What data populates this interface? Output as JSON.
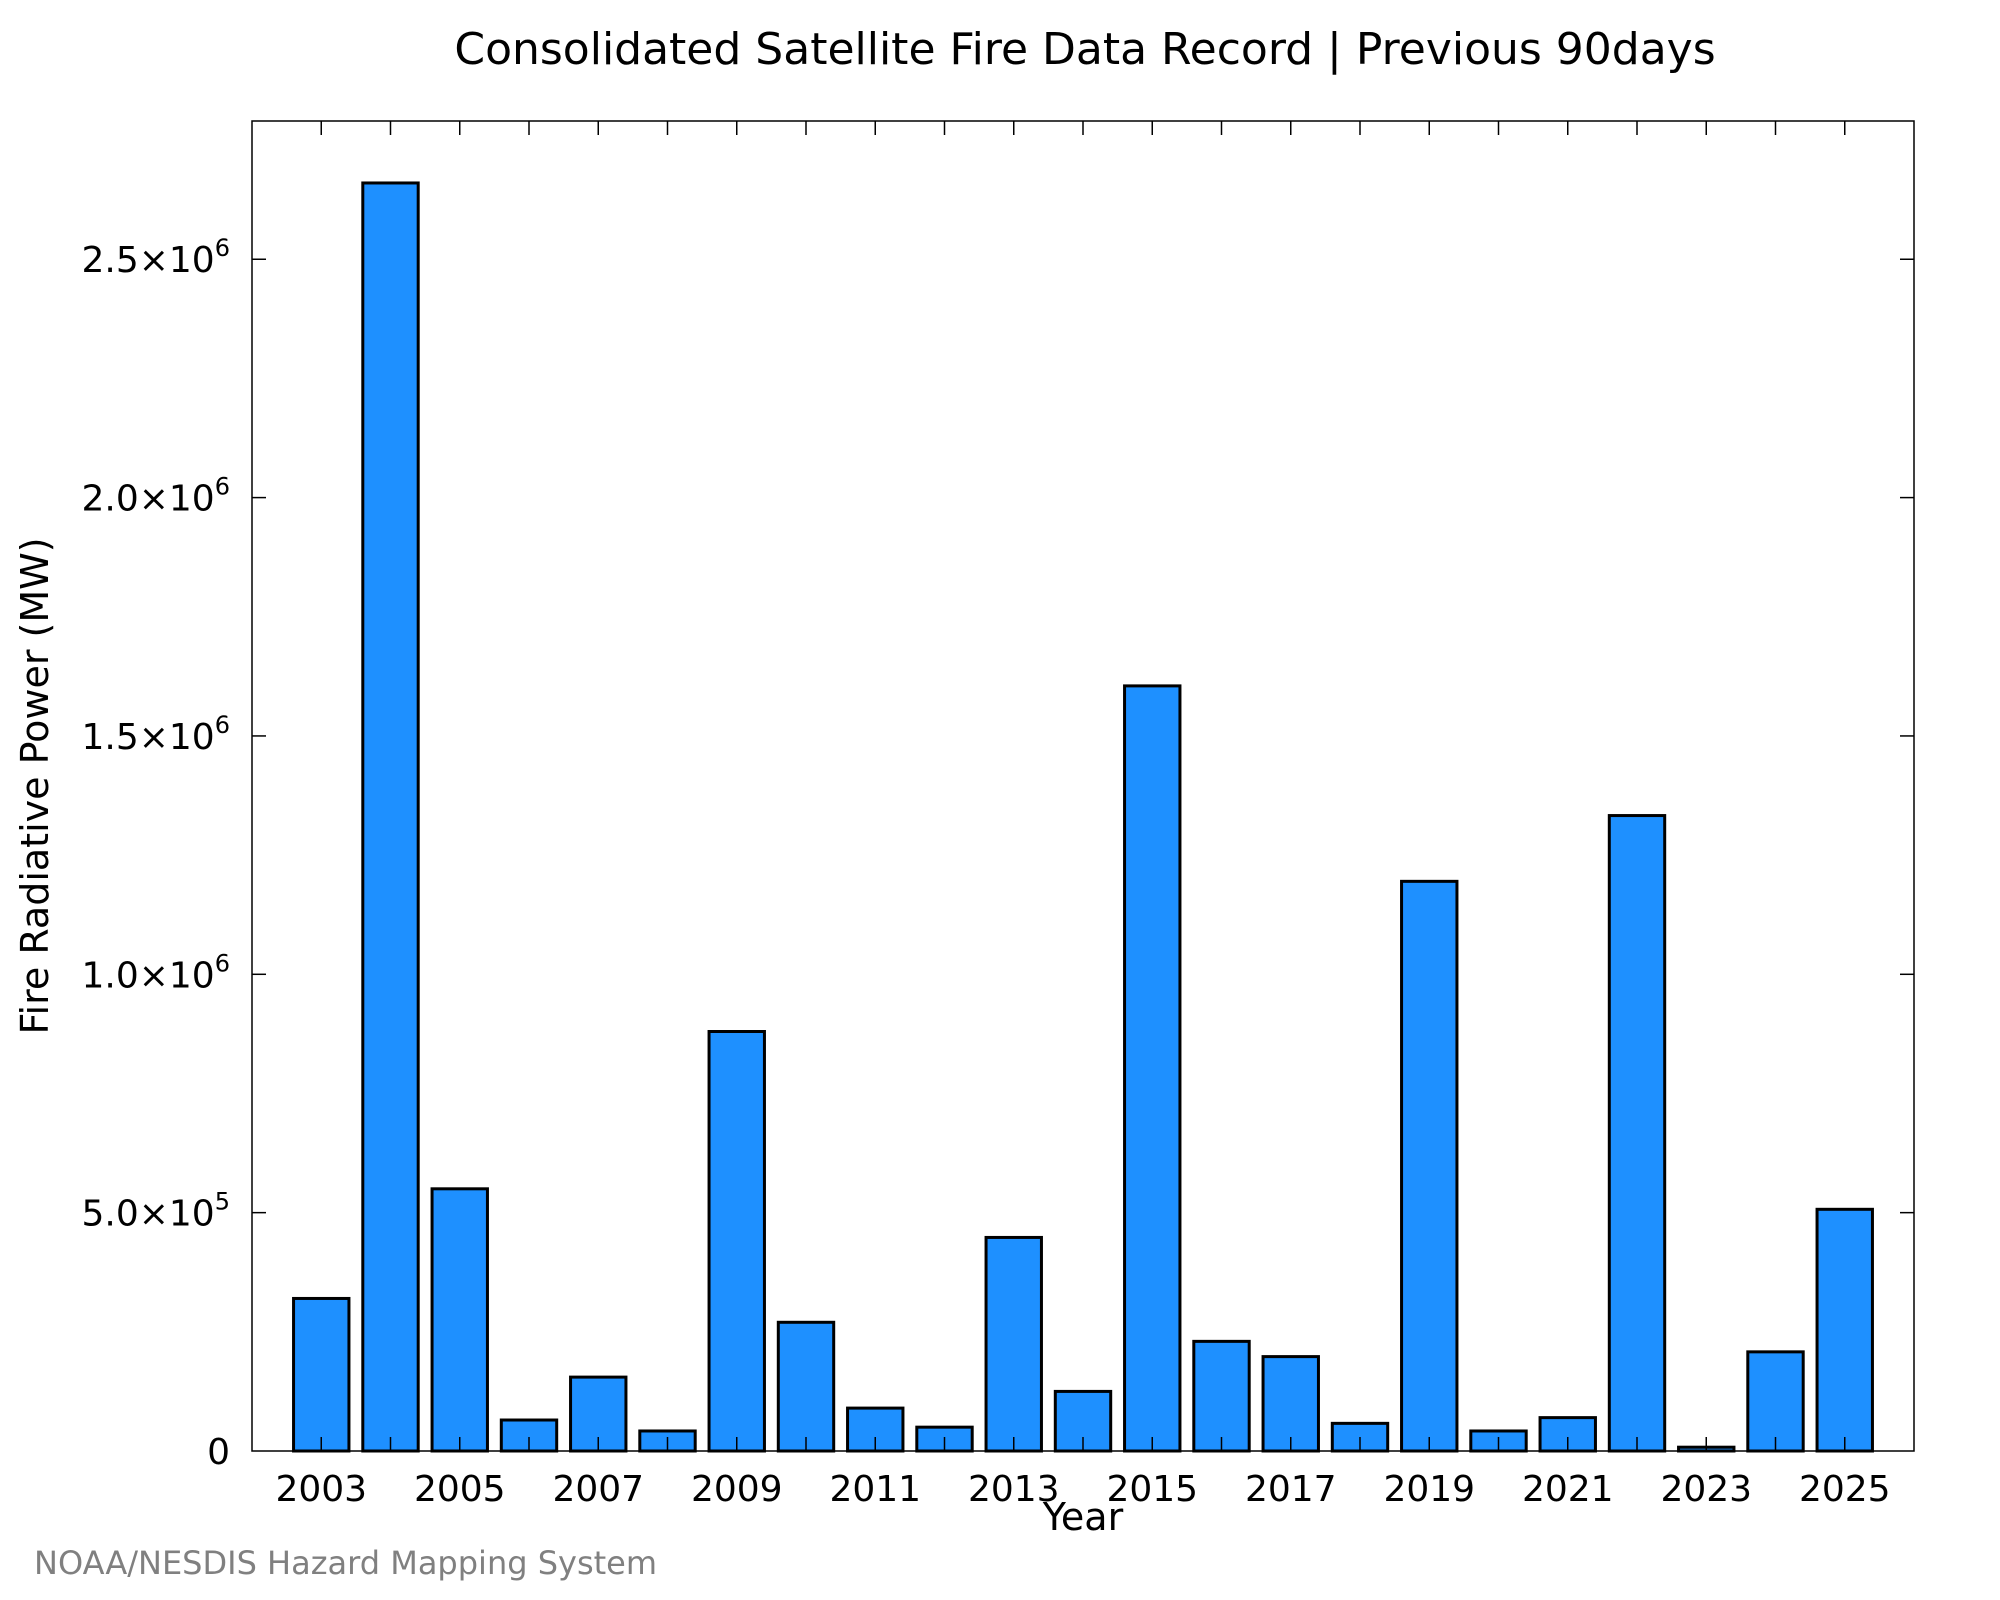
{
  "chart_data": {
    "type": "bar",
    "title": "Consolidated Satellite Fire Data Record | Previous 90days",
    "xlabel": "Year",
    "ylabel": "Fire Radiative Power (MW)",
    "credit": "NOAA/NESDIS Hazard Mapping System",
    "categories": [
      2003,
      2004,
      2005,
      2006,
      2007,
      2008,
      2009,
      2010,
      2011,
      2012,
      2013,
      2014,
      2015,
      2016,
      2017,
      2018,
      2019,
      2020,
      2021,
      2022,
      2023,
      2024,
      2025
    ],
    "values": [
      320000,
      2660000,
      550000,
      65000,
      155000,
      42000,
      880000,
      270000,
      90000,
      50000,
      448000,
      125000,
      1605000,
      230000,
      198000,
      58000,
      1195000,
      42000,
      70000,
      1333000,
      8000,
      208000,
      507000
    ],
    "xlim": [
      2002.0,
      2026.0
    ],
    "ylim": [
      0,
      2790000
    ],
    "x_ticks": [
      2003,
      2005,
      2007,
      2009,
      2011,
      2013,
      2015,
      2017,
      2019,
      2021,
      2023,
      2025
    ],
    "x_tick_labels": [
      "2003",
      "2005",
      "2007",
      "2009",
      "2011",
      "2013",
      "2015",
      "2017",
      "2019",
      "2021",
      "2023",
      "2025"
    ],
    "y_ticks": [
      0,
      500000,
      1000000,
      1500000,
      2000000,
      2500000
    ],
    "y_tick_labels": [
      {
        "mantissa": "0",
        "exponent": ""
      },
      {
        "mantissa": "5.0×10",
        "exponent": "5"
      },
      {
        "mantissa": "1.0×10",
        "exponent": "6"
      },
      {
        "mantissa": "1.5×10",
        "exponent": "6"
      },
      {
        "mantissa": "2.0×10",
        "exponent": "6"
      },
      {
        "mantissa": "2.5×10",
        "exponent": "6"
      }
    ],
    "bar_color": "#1e90ff",
    "edge_color": "#000000",
    "grid": false,
    "legend": "none"
  }
}
